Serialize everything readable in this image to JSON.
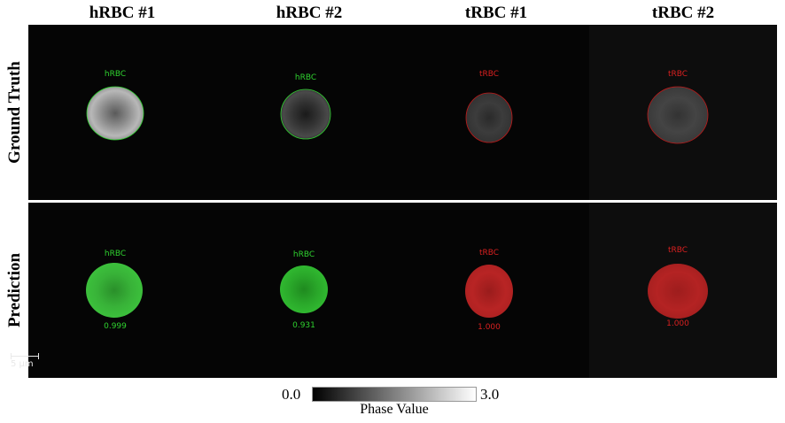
{
  "columns": [
    {
      "title": "hRBC #1"
    },
    {
      "title": "hRBC #2"
    },
    {
      "title": "tRBC #1"
    },
    {
      "title": "tRBC #2"
    }
  ],
  "rows": [
    {
      "title": "Ground Truth"
    },
    {
      "title": "Prediction"
    }
  ],
  "ground_truth": [
    {
      "label": "hRBC",
      "class_color": "#2fd22f"
    },
    {
      "label": "hRBC",
      "class_color": "#2fd22f"
    },
    {
      "label": "tRBC",
      "class_color": "#d82020"
    },
    {
      "label": "tRBC",
      "class_color": "#d82020"
    }
  ],
  "prediction": [
    {
      "label": "hRBC",
      "score": "0.999",
      "class_color": "#2fd22f"
    },
    {
      "label": "hRBC",
      "score": "0.931",
      "class_color": "#2fd22f"
    },
    {
      "label": "tRBC",
      "score": "1.000",
      "class_color": "#d82020"
    },
    {
      "label": "tRBC",
      "score": "1.000",
      "class_color": "#d82020"
    }
  ],
  "scalebar": {
    "label": "5 μm"
  },
  "colorbar": {
    "min": "0.0",
    "max": "3.0",
    "label": "Phase Value"
  }
}
